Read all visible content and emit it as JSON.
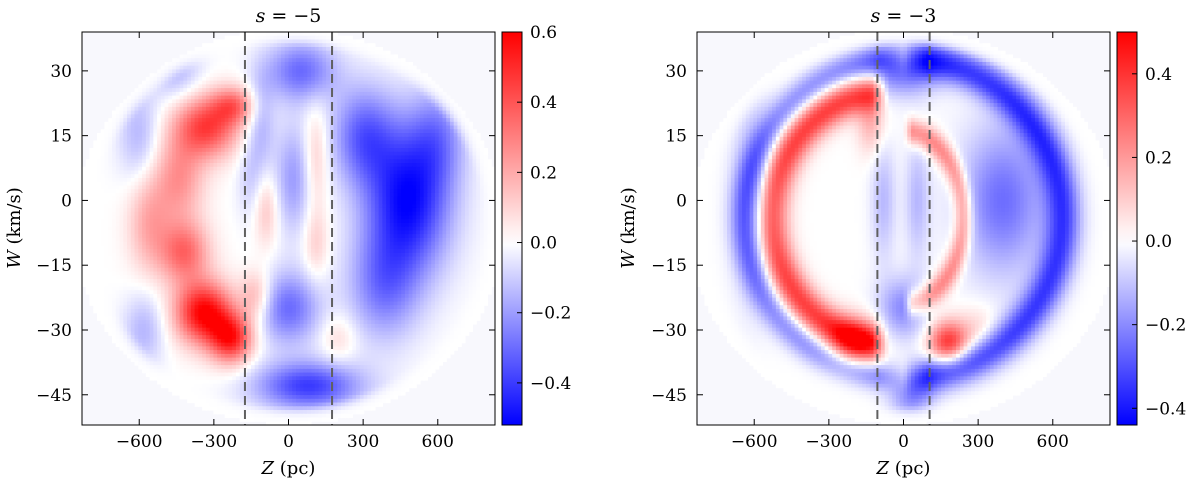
{
  "chart_data": [
    {
      "type": "heatmap",
      "title": "s = −5",
      "title_parts": {
        "var": "s",
        "rest": " = −5"
      },
      "xlabel": "Z (pc)",
      "xlabel_parts": {
        "var": "Z",
        "rest": " (pc)"
      },
      "ylabel": "W (km/s)",
      "ylabel_parts": {
        "var": "W",
        "rest": " (km/s)"
      },
      "xlim": [
        -830,
        830
      ],
      "ylim": [
        -52,
        39
      ],
      "xticks": [
        -600,
        -300,
        0,
        300,
        600
      ],
      "xtick_labels": [
        "−600",
        "−300",
        "0",
        "300",
        "600"
      ],
      "yticks": [
        30,
        15,
        0,
        -15,
        -30,
        -45
      ],
      "ytick_labels": [
        "30",
        "15",
        "0",
        "−15",
        "−30",
        "−45"
      ],
      "vlines_x": [
        -175,
        175
      ],
      "vline_color": "#606060",
      "colorbar": {
        "vmin": -0.52,
        "vmax": 0.6,
        "ticks": [
          0.6,
          0.4,
          0.2,
          0.0,
          -0.2,
          -0.4
        ],
        "tick_labels": [
          "0.6",
          "0.4",
          "0.2",
          "0.0",
          "−0.2",
          "−0.4"
        ],
        "colormap": "bwr",
        "low_color": "#0000ff",
        "mid_color": "#ffffff",
        "high_color": "#ff0000"
      },
      "disk": {
        "center_z": 0,
        "center_w": -6,
        "radius_z": 770,
        "radius_w": 41
      },
      "blobs": [
        {
          "z": -330,
          "w": 17,
          "sz": 90,
          "sw": 5,
          "amp": 0.45
        },
        {
          "z": -220,
          "w": 22,
          "sz": 60,
          "sw": 3,
          "amp": 0.3
        },
        {
          "z": -440,
          "w": 5,
          "sz": 70,
          "sw": 7,
          "amp": 0.25
        },
        {
          "z": -560,
          "w": -5,
          "sz": 60,
          "sw": 8,
          "amp": 0.2
        },
        {
          "z": -420,
          "w": -12,
          "sz": 70,
          "sw": 5,
          "amp": 0.35
        },
        {
          "z": -340,
          "w": -26,
          "sz": 80,
          "sw": 5,
          "amp": 0.6
        },
        {
          "z": -230,
          "w": -32,
          "sz": 60,
          "sw": 4,
          "amp": 0.5
        },
        {
          "z": -130,
          "w": -22,
          "sz": 45,
          "sw": 4,
          "amp": 0.2
        },
        {
          "z": -90,
          "w": -2,
          "sz": 35,
          "sw": 6,
          "amp": 0.15
        },
        {
          "z": 110,
          "w": 10,
          "sz": 35,
          "sw": 8,
          "amp": 0.15
        },
        {
          "z": 110,
          "w": -10,
          "sz": 35,
          "sw": 6,
          "amp": 0.12
        },
        {
          "z": 480,
          "w": 0,
          "sz": 120,
          "sw": 12,
          "amp": -0.5
        },
        {
          "z": 300,
          "w": 15,
          "sz": 90,
          "sw": 8,
          "amp": -0.3
        },
        {
          "z": 50,
          "w": 30,
          "sz": 100,
          "sw": 5,
          "amp": -0.3
        },
        {
          "z": 0,
          "w": -25,
          "sz": 90,
          "sw": 6,
          "amp": -0.3
        },
        {
          "z": 80,
          "w": -43,
          "sz": 150,
          "sw": 4,
          "amp": -0.4
        },
        {
          "z": 380,
          "w": -20,
          "sz": 100,
          "sw": 9,
          "amp": -0.25
        },
        {
          "z": 600,
          "w": 15,
          "sz": 80,
          "sw": 8,
          "amp": -0.2
        },
        {
          "z": 20,
          "w": 5,
          "sz": 55,
          "sw": 9,
          "amp": -0.2
        },
        {
          "z": -110,
          "w": 18,
          "sz": 40,
          "sw": 8,
          "amp": -0.15
        },
        {
          "z": -580,
          "w": -30,
          "sz": 60,
          "sw": 6,
          "amp": -0.15
        },
        {
          "z": -600,
          "w": 15,
          "sz": 60,
          "sw": 8,
          "amp": -0.15
        },
        {
          "z": -450,
          "w": 30,
          "sz": 70,
          "sw": 5,
          "amp": -0.15
        },
        {
          "z": -150,
          "w": 5,
          "sz": 40,
          "sw": 7,
          "amp": -0.1
        },
        {
          "z": 200,
          "w": -32,
          "sz": 50,
          "sw": 4,
          "amp": 0.1
        }
      ]
    },
    {
      "type": "heatmap",
      "title": "s = −3",
      "title_parts": {
        "var": "s",
        "rest": " = −3"
      },
      "xlabel": "Z (pc)",
      "xlabel_parts": {
        "var": "Z",
        "rest": " (pc)"
      },
      "ylabel": "W (km/s)",
      "ylabel_parts": {
        "var": "W",
        "rest": " (km/s)"
      },
      "xlim": [
        -830,
        830
      ],
      "ylim": [
        -52,
        39
      ],
      "xticks": [
        -600,
        -300,
        0,
        300,
        600
      ],
      "xtick_labels": [
        "−600",
        "−300",
        "0",
        "300",
        "600"
      ],
      "yticks": [
        30,
        15,
        0,
        -15,
        -30,
        -45
      ],
      "ytick_labels": [
        "30",
        "15",
        "0",
        "−15",
        "−30",
        "−45"
      ],
      "vlines_x": [
        -105,
        105
      ],
      "vline_color": "#606060",
      "colorbar": {
        "vmin": -0.44,
        "vmax": 0.5,
        "ticks": [
          0.4,
          0.2,
          0.0,
          -0.2,
          -0.4
        ],
        "tick_labels": [
          "0.4",
          "0.2",
          "0.0",
          "−0.2",
          "−0.4"
        ],
        "colormap": "bwr",
        "low_color": "#0000ff",
        "mid_color": "#ffffff",
        "high_color": "#ff0000"
      },
      "disk": {
        "center_z": 0,
        "center_w": -6,
        "radius_z": 770,
        "radius_w": 41
      },
      "rings": [
        {
          "z0": -60,
          "w0": -4,
          "rz": 470,
          "rw": 29,
          "width": 0.14,
          "amp": 0.38,
          "side": "left"
        },
        {
          "z0": 0,
          "w0": -4,
          "rz": 640,
          "rw": 37,
          "width": 0.09,
          "amp": -0.2,
          "side": "left"
        },
        {
          "z0": 0,
          "w0": -4,
          "rz": 640,
          "rw": 37,
          "width": 0.11,
          "amp": -0.33,
          "side": "right"
        },
        {
          "z0": 0,
          "w0": -4,
          "rz": 240,
          "rw": 20,
          "width": 0.15,
          "amp": 0.25,
          "side": "right"
        }
      ],
      "blobs": [
        {
          "z": -200,
          "w": -33,
          "sz": 70,
          "sw": 4,
          "amp": 0.25
        },
        {
          "z": 180,
          "w": -33,
          "sz": 55,
          "sw": 3.5,
          "amp": 0.4
        },
        {
          "z": -130,
          "w": 18,
          "sz": 40,
          "sw": 5,
          "amp": 0.15
        },
        {
          "z": 400,
          "w": 0,
          "sz": 120,
          "sw": 12,
          "amp": -0.25
        },
        {
          "z": 0,
          "w": 30,
          "sz": 100,
          "sw": 4,
          "amp": -0.25
        },
        {
          "z": 0,
          "w": -25,
          "sz": 70,
          "sw": 5,
          "amp": -0.2
        },
        {
          "z": 30,
          "w": -45,
          "sz": 60,
          "sw": 4,
          "amp": -0.2
        },
        {
          "z": -80,
          "w": 0,
          "sz": 35,
          "sw": 10,
          "amp": -0.12
        },
        {
          "z": 55,
          "w": 0,
          "sz": 35,
          "sw": 10,
          "amp": -0.12
        },
        {
          "z": -600,
          "w": 0,
          "sz": 60,
          "sw": 15,
          "amp": -0.15
        },
        {
          "z": 300,
          "w": -30,
          "sz": 60,
          "sw": 4,
          "amp": 0.08
        }
      ]
    }
  ]
}
